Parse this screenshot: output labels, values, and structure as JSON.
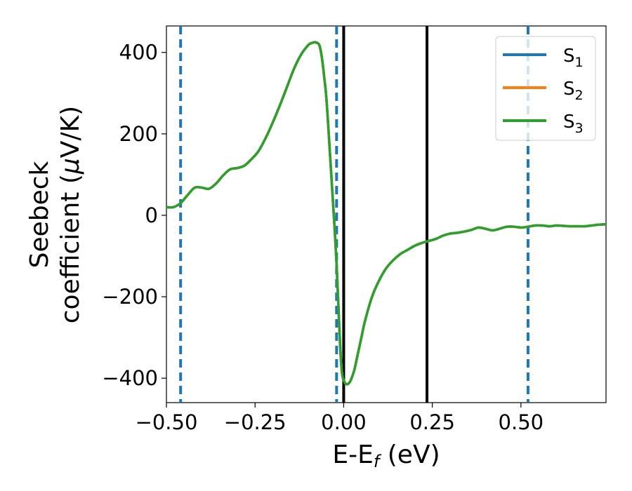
{
  "chart_data": {
    "type": "line",
    "xlabel": {
      "main": "E-E",
      "sub": "f",
      "suffix": " (eV)"
    },
    "ylabel": {
      "line1": "Seebeck",
      "line2": "coefficient  (",
      "mu": "μ",
      "line2_end": "V/K)"
    },
    "xlim": [
      -0.5,
      0.74
    ],
    "ylim": [
      -460,
      465
    ],
    "xticks": [
      -0.5,
      -0.25,
      0.0,
      0.25,
      0.5
    ],
    "xtick_labels": [
      "−0.50",
      "−0.25",
      "0.00",
      "0.25",
      "0.50"
    ],
    "yticks": [
      -400,
      -200,
      0,
      200,
      400
    ],
    "ytick_labels": [
      "−400",
      "−200",
      "0",
      "200",
      "400"
    ],
    "grid": false,
    "legend_position": "top-right",
    "series": [
      {
        "name": "S",
        "sub": "1",
        "color": "#1f77b4"
      },
      {
        "name": "S",
        "sub": "2",
        "color": "#ff7f0e"
      },
      {
        "name": "S",
        "sub": "3",
        "color": "#2ca02c"
      }
    ],
    "curve": {
      "x": [
        -0.5,
        -0.48,
        -0.46,
        -0.44,
        -0.42,
        -0.4,
        -0.38,
        -0.36,
        -0.34,
        -0.32,
        -0.3,
        -0.28,
        -0.26,
        -0.24,
        -0.22,
        -0.2,
        -0.18,
        -0.16,
        -0.14,
        -0.12,
        -0.1,
        -0.09,
        -0.08,
        -0.07,
        -0.065,
        -0.06,
        -0.055,
        -0.05,
        -0.045,
        -0.04,
        -0.035,
        -0.03,
        -0.025,
        -0.02,
        -0.015,
        -0.01,
        -0.005,
        0.0,
        0.005,
        0.01,
        0.015,
        0.02,
        0.03,
        0.04,
        0.05,
        0.06,
        0.08,
        0.1,
        0.12,
        0.14,
        0.16,
        0.18,
        0.2,
        0.22,
        0.24,
        0.26,
        0.28,
        0.3,
        0.32,
        0.34,
        0.36,
        0.38,
        0.4,
        0.42,
        0.44,
        0.46,
        0.48,
        0.5,
        0.52,
        0.54,
        0.56,
        0.58,
        0.6,
        0.62,
        0.64,
        0.66,
        0.68,
        0.7,
        0.72,
        0.74
      ],
      "y": [
        20,
        20,
        30,
        50,
        68,
        68,
        65,
        78,
        98,
        113,
        116,
        122,
        138,
        158,
        190,
        228,
        270,
        315,
        360,
        395,
        418,
        423,
        425,
        420,
        405,
        378,
        340,
        300,
        240,
        170,
        100,
        30,
        -40,
        -120,
        -220,
        -320,
        -385,
        -405,
        -413,
        -415,
        -412,
        -405,
        -380,
        -340,
        -300,
        -260,
        -200,
        -160,
        -130,
        -110,
        -95,
        -85,
        -75,
        -68,
        -63,
        -58,
        -50,
        -45,
        -43,
        -40,
        -36,
        -30,
        -33,
        -37,
        -33,
        -28,
        -28,
        -30,
        -28,
        -25,
        -25,
        -27,
        -25,
        -26,
        -27,
        -27,
        -27,
        -25,
        -23,
        -22
      ]
    },
    "vlines_dashed": {
      "x": [
        -0.46,
        -0.02,
        0.52
      ],
      "color": "#1f77b4"
    },
    "vlines_solid": {
      "x": [
        0.0,
        0.235
      ],
      "color": "#000000"
    }
  }
}
